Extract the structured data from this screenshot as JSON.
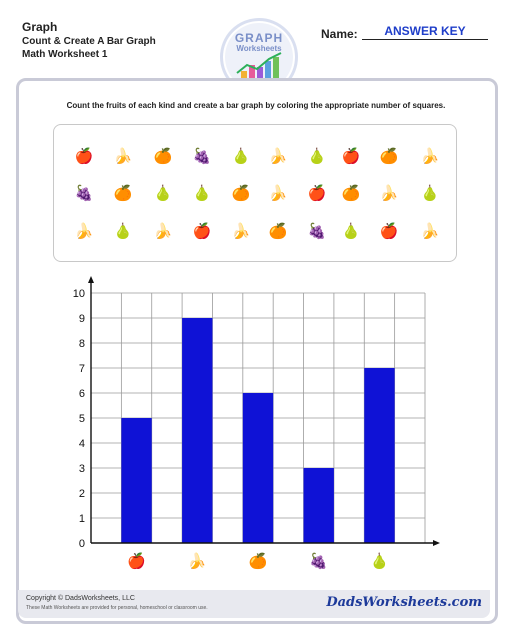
{
  "header": {
    "title": "Graph",
    "subtitle": "Count & Create A Bar Graph",
    "worksheet": "Math Worksheet 1",
    "name_label": "Name:",
    "name_value": "ANSWER KEY"
  },
  "logo": {
    "line1": "GRAPH",
    "line2": "Worksheets",
    "icon": "bar-chart-logo-icon"
  },
  "instructions": "Count the fruits of each kind and create a bar graph by coloring the appropriate number of squares.",
  "fruit_rows": [
    [
      "apple",
      "banana",
      "orange",
      "grapes",
      "pear",
      "banana",
      "pear",
      "apple",
      "orange",
      "banana"
    ],
    [
      "grapes",
      "orange",
      "pear",
      "pear",
      "orange",
      "banana",
      "apple",
      "orange",
      "banana",
      "pear"
    ],
    [
      "banana",
      "pear",
      "banana",
      "apple",
      "banana",
      "orange",
      "grapes",
      "pear",
      "apple",
      "banana"
    ]
  ],
  "fruit_glyphs": {
    "apple": "🍎",
    "banana": "🍌",
    "orange": "🍊",
    "grapes": "🍇",
    "pear": "🍐"
  },
  "colors": {
    "bar": "#0f12d6",
    "grid": "#9a9a9a",
    "accent": "#1f3ec9"
  },
  "chart_data": {
    "type": "bar",
    "categories": [
      "apple",
      "banana",
      "orange",
      "grapes",
      "pear"
    ],
    "values": [
      5,
      9,
      6,
      3,
      7
    ],
    "ylim": [
      0,
      10
    ],
    "yticks": [
      0,
      1,
      2,
      3,
      4,
      5,
      6,
      7,
      8,
      9,
      10
    ],
    "grid": true,
    "title": "",
    "xlabel": "",
    "ylabel": ""
  },
  "footer": {
    "copyright": "Copyright © DadsWorksheets, LLC",
    "note": "These Math Worksheets are provided for personal, homeschool or classroom use.",
    "brand": "DadsWorksheets.com"
  }
}
